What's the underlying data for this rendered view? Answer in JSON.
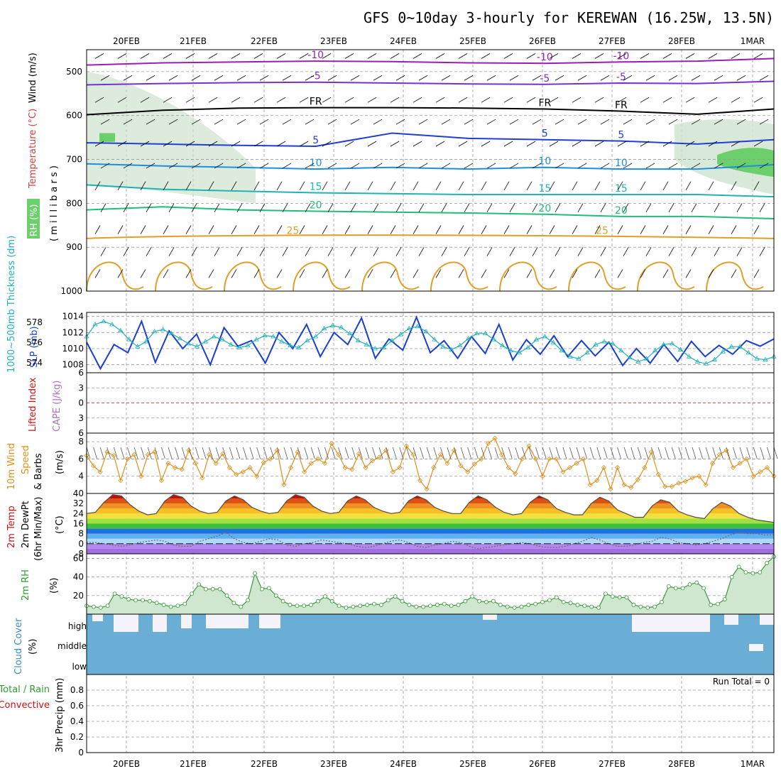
{
  "title": "GFS 0~10day 3-hourly for KEREWAN (16.25W, 13.5N)",
  "dates": [
    "20FEB",
    "21FEB",
    "22FEB",
    "23FEB",
    "24FEB",
    "25FEB",
    "26FEB",
    "27FEB",
    "28FEB",
    "1MAR"
  ],
  "colors": {
    "purple": "#9b1fb5",
    "violet": "#7a2fcf",
    "black": "#000000",
    "blue": "#1f3fd8",
    "cyan": "#1e8fe0",
    "teal": "#1fb4b4",
    "green": "#1fbf7a",
    "orange": "#e0a028",
    "magenta": "#d0207a",
    "slp": "#1a3fd0",
    "thick": "#20b0b8",
    "wind": "#e0901c",
    "rh_fill": "#cfe6cf",
    "rh_line": "#3a9a3a",
    "cloud": "#6aaed6",
    "red": "#d01010"
  },
  "panel_labels": {
    "upper": {
      "wind": "Wind (m/s)",
      "temp": "Temperature (°C)",
      "rh": "RH (%)",
      "axis": "( m i l l i b a r s )"
    },
    "slp": {
      "thick": "1000~500mb Thickness (dm)",
      "slp": "SLP (mb)"
    },
    "cape": {
      "li": "Lifted Index",
      "cape": "CAPE (J/kg)"
    },
    "wind10": {
      "l1": "10m Wind",
      "l2": "Speed",
      "l3": "& Barbs",
      "unit": "(m/s)"
    },
    "temp2m": {
      "l1": "2m Temp",
      "l2": "2m DewPt",
      "l3": "(6hr Min/Max)",
      "unit": "(°C)"
    },
    "rh2m": {
      "l1": "2m RH",
      "unit": "(%)"
    },
    "cloud": {
      "l1": "Cloud Cover",
      "unit": "(%)",
      "high": "high",
      "middle": "middle",
      "low": "low"
    },
    "precip": {
      "l1": "Total / Rain",
      "l2": "Convective",
      "l3": "3hr Precip (mm)",
      "run_total": "Run Total = 0"
    }
  },
  "chart_data": [
    {
      "type": "line",
      "name": "upper-air isotherms",
      "y_axis": "pressure (mb)",
      "ylim": [
        1000,
        450
      ],
      "yticks": [
        500,
        600,
        700,
        800,
        900,
        1000
      ],
      "isotherm_labels": [
        {
          "label": "-10"
        },
        {
          "label": "-5"
        },
        {
          "label": "FR"
        },
        {
          "label": "5"
        },
        {
          "label": "10"
        },
        {
          "label": "15"
        },
        {
          "label": "20"
        },
        {
          "label": "25"
        }
      ],
      "isotherms": [
        {
          "label": "-10",
          "p": [
            485,
            480,
            478,
            476,
            477,
            480,
            481,
            478,
            476,
            470
          ]
        },
        {
          "label": "-5",
          "p": [
            530,
            527,
            525,
            524,
            526,
            528,
            529,
            526,
            527,
            522
          ]
        },
        {
          "label": "FR",
          "p": [
            598,
            588,
            583,
            582,
            582,
            583,
            585,
            590,
            597,
            585
          ]
        },
        {
          "label": "5",
          "p": [
            662,
            665,
            668,
            670,
            640,
            652,
            655,
            658,
            665,
            655
          ]
        },
        {
          "label": "10",
          "p": [
            710,
            715,
            718,
            722,
            718,
            722,
            718,
            722,
            722,
            712
          ]
        },
        {
          "label": "15",
          "p": [
            758,
            768,
            772,
            776,
            778,
            780,
            780,
            780,
            780,
            785
          ]
        },
        {
          "label": "20",
          "p": [
            815,
            808,
            815,
            818,
            820,
            822,
            825,
            830,
            830,
            835
          ]
        }
      ]
    },
    {
      "type": "line",
      "name": "SLP and thickness",
      "slp_axis": {
        "ylim": [
          1007,
          1014.5
        ],
        "ticks": [
          1008,
          1010,
          1012,
          1014
        ]
      },
      "thick_axis": {
        "ylim": [
          573,
          579
        ],
        "ticks": [
          574,
          576,
          578
        ]
      },
      "slp": [
        1010.8,
        1007.5,
        1010.5,
        1009.5,
        1013.4,
        1008.3,
        1012.2,
        1010.0,
        1011.8,
        1008.0,
        1012.6,
        1010.3,
        1011.0,
        1008.2,
        1012.0,
        1010.0,
        1013.0,
        1009.0,
        1012.0,
        1010.5,
        1013.8,
        1008.8,
        1011.2,
        1009.8,
        1013.9,
        1009.5,
        1011.0,
        1008.8,
        1011.5,
        1009.4,
        1013.0,
        1008.6,
        1011.1,
        1009.3,
        1011.6,
        1009.0,
        1011.0,
        1009.1,
        1010.8,
        1007.9,
        1010.0,
        1008.2,
        1010.5,
        1008.4,
        1010.9,
        1009.0,
        1010.4,
        1009.3,
        1011.0,
        1010.3,
        1011.2
      ],
      "thick": [
        576.6,
        577.8,
        578.1,
        577.8,
        577.2,
        576.3,
        575.6,
        576.1,
        577.1,
        577.3,
        576.9,
        576.4,
        575.9,
        575.6,
        576.1,
        576.6,
        576.3,
        575.8,
        575.5,
        575.7,
        576.3,
        576.7,
        576.6,
        576.1,
        575.7,
        575.5,
        576.2,
        576.6,
        577.4,
        577.7,
        577.5,
        576.9,
        576.2,
        575.8,
        575.4,
        575.5,
        576.2,
        576.8,
        577.4,
        577.6,
        577.1,
        576.3,
        575.6,
        575.3,
        575.7,
        576.4,
        576.9,
        576.9,
        576.3,
        575.7,
        575.2,
        575.0,
        575.5,
        576.3,
        576.6,
        576.0,
        575.2,
        574.6,
        574.4,
        575.0,
        575.8,
        576.1,
        575.9,
        575.2,
        574.5,
        574.1,
        574.4,
        575.2,
        575.8,
        575.9,
        575.3,
        574.6,
        574.1,
        573.9,
        574.3,
        575.1,
        575.6,
        575.6,
        575.0,
        574.4,
        574.3,
        574.6
      ]
    },
    {
      "type": "line",
      "name": "Lifted Index / CAPE",
      "ylim": [
        -6,
        6
      ],
      "yticks": [
        6,
        3,
        0,
        3,
        6
      ],
      "lifted_index": [],
      "cape": []
    },
    {
      "type": "line",
      "name": "10m wind speed",
      "ylim": [
        2,
        9
      ],
      "yticks": [
        4,
        6,
        8
      ],
      "values": [
        6.4,
        5.2,
        4.5,
        6.8,
        6.4,
        3.5,
        6.0,
        6.5,
        4.0,
        6.5,
        6.8,
        3.5,
        5.5,
        5.0,
        4.8,
        7.0,
        5.5,
        3.8,
        6.5,
        5.5,
        6.6,
        5.0,
        4.2,
        4.5,
        5.0,
        4.0,
        5.6,
        6.0,
        7.0,
        3.0,
        5.0,
        6.8,
        4.5,
        5.5,
        6.0,
        5.5,
        7.8,
        6.5,
        5.0,
        4.8,
        6.6,
        5.0,
        5.8,
        6.2,
        7.0,
        4.5,
        5.0,
        7.5,
        6.5,
        3.5,
        2.5,
        5.0,
        6.5,
        5.5,
        7.0,
        5.2,
        4.5,
        5.4,
        6.0,
        7.8,
        8.4,
        6.5,
        5.0,
        4.3,
        6.0,
        7.5,
        6.0,
        4.0,
        6.0,
        6.0,
        4.5,
        5.0,
        5.5,
        6.0,
        3.0,
        3.5,
        5.0,
        2.5,
        5.0,
        3.0,
        2.7,
        3.6,
        5.0,
        6.8,
        4.2,
        2.8,
        2.8,
        3.2,
        3.4,
        3.8,
        4.0,
        3.0,
        5.5,
        6.5,
        7.0,
        5.0,
        5.5,
        6.0,
        4.0,
        4.5,
        5.0,
        4.0
      ]
    },
    {
      "type": "area",
      "name": "2m temp and dewpoint",
      "ylim": [
        -8,
        40
      ],
      "yticks": [
        -8,
        0,
        8,
        16,
        24,
        32,
        40
      ],
      "temp": [
        24,
        25,
        33,
        39,
        38,
        31,
        26,
        23,
        24,
        34,
        39,
        37,
        30,
        26,
        24,
        25,
        34,
        38,
        35,
        29,
        26,
        24,
        25,
        34,
        39,
        37,
        30,
        26,
        24,
        25,
        34,
        38,
        35,
        29,
        26,
        24,
        25,
        34,
        38,
        35,
        29,
        26,
        24,
        24,
        33,
        38,
        35,
        29,
        25,
        23,
        24,
        33,
        38,
        35,
        28,
        25,
        23,
        23,
        32,
        37,
        34,
        27,
        24,
        21,
        21,
        30,
        35,
        33,
        26,
        23,
        21,
        20,
        28,
        33,
        30,
        24,
        21,
        19,
        18,
        17
      ],
      "dewpoint": [
        1,
        1,
        0,
        -1,
        -2,
        -1,
        1,
        2,
        3,
        2,
        -1,
        -2,
        -2,
        2,
        4,
        6,
        9,
        4,
        1,
        0,
        2,
        4,
        3,
        -1,
        -2,
        0,
        1,
        3,
        2,
        1,
        0,
        -2,
        -3,
        -2,
        0,
        2,
        3,
        1,
        -2,
        -3,
        -1,
        0,
        2,
        1,
        -2,
        -4,
        -3,
        -2,
        -1,
        0,
        1,
        0,
        -2,
        -3,
        -3,
        -2,
        0,
        2,
        5,
        3,
        0,
        -2,
        -2,
        -1,
        1,
        2,
        5,
        4,
        1,
        0,
        -1,
        0,
        2,
        4,
        7,
        9,
        8,
        8,
        7,
        7
      ]
    },
    {
      "type": "area",
      "name": "2m RH",
      "ylim": [
        0,
        65
      ],
      "yticks": [
        20,
        40,
        60
      ],
      "values": [
        9,
        8,
        7,
        9,
        22,
        19,
        16,
        15,
        15,
        14,
        12,
        10,
        8,
        9,
        11,
        22,
        32,
        27,
        27,
        27,
        20,
        12,
        8,
        15,
        44,
        27,
        28,
        20,
        14,
        10,
        9,
        9,
        10,
        14,
        19,
        14,
        9,
        7,
        8,
        9,
        10,
        11,
        10,
        15,
        19,
        14,
        10,
        8,
        8,
        9,
        10,
        11,
        9,
        10,
        14,
        19,
        14,
        13,
        14,
        10,
        8,
        7,
        8,
        10,
        11,
        13,
        15,
        18,
        13,
        12,
        10,
        9,
        8,
        7,
        22,
        19,
        18,
        18,
        10,
        8,
        7,
        8,
        13,
        30,
        28,
        28,
        32,
        34,
        28,
        10,
        11,
        16,
        40,
        51,
        45,
        44,
        45,
        55,
        62
      ]
    },
    {
      "type": "heatmap",
      "name": "cloud cover",
      "levels": [
        "high",
        "middle",
        "low"
      ]
    },
    {
      "type": "bar",
      "name": "3hr precip",
      "ylim": [
        0,
        1
      ],
      "yticks": [
        0,
        0.2,
        0.4,
        0.6,
        0.8
      ],
      "values": []
    }
  ]
}
